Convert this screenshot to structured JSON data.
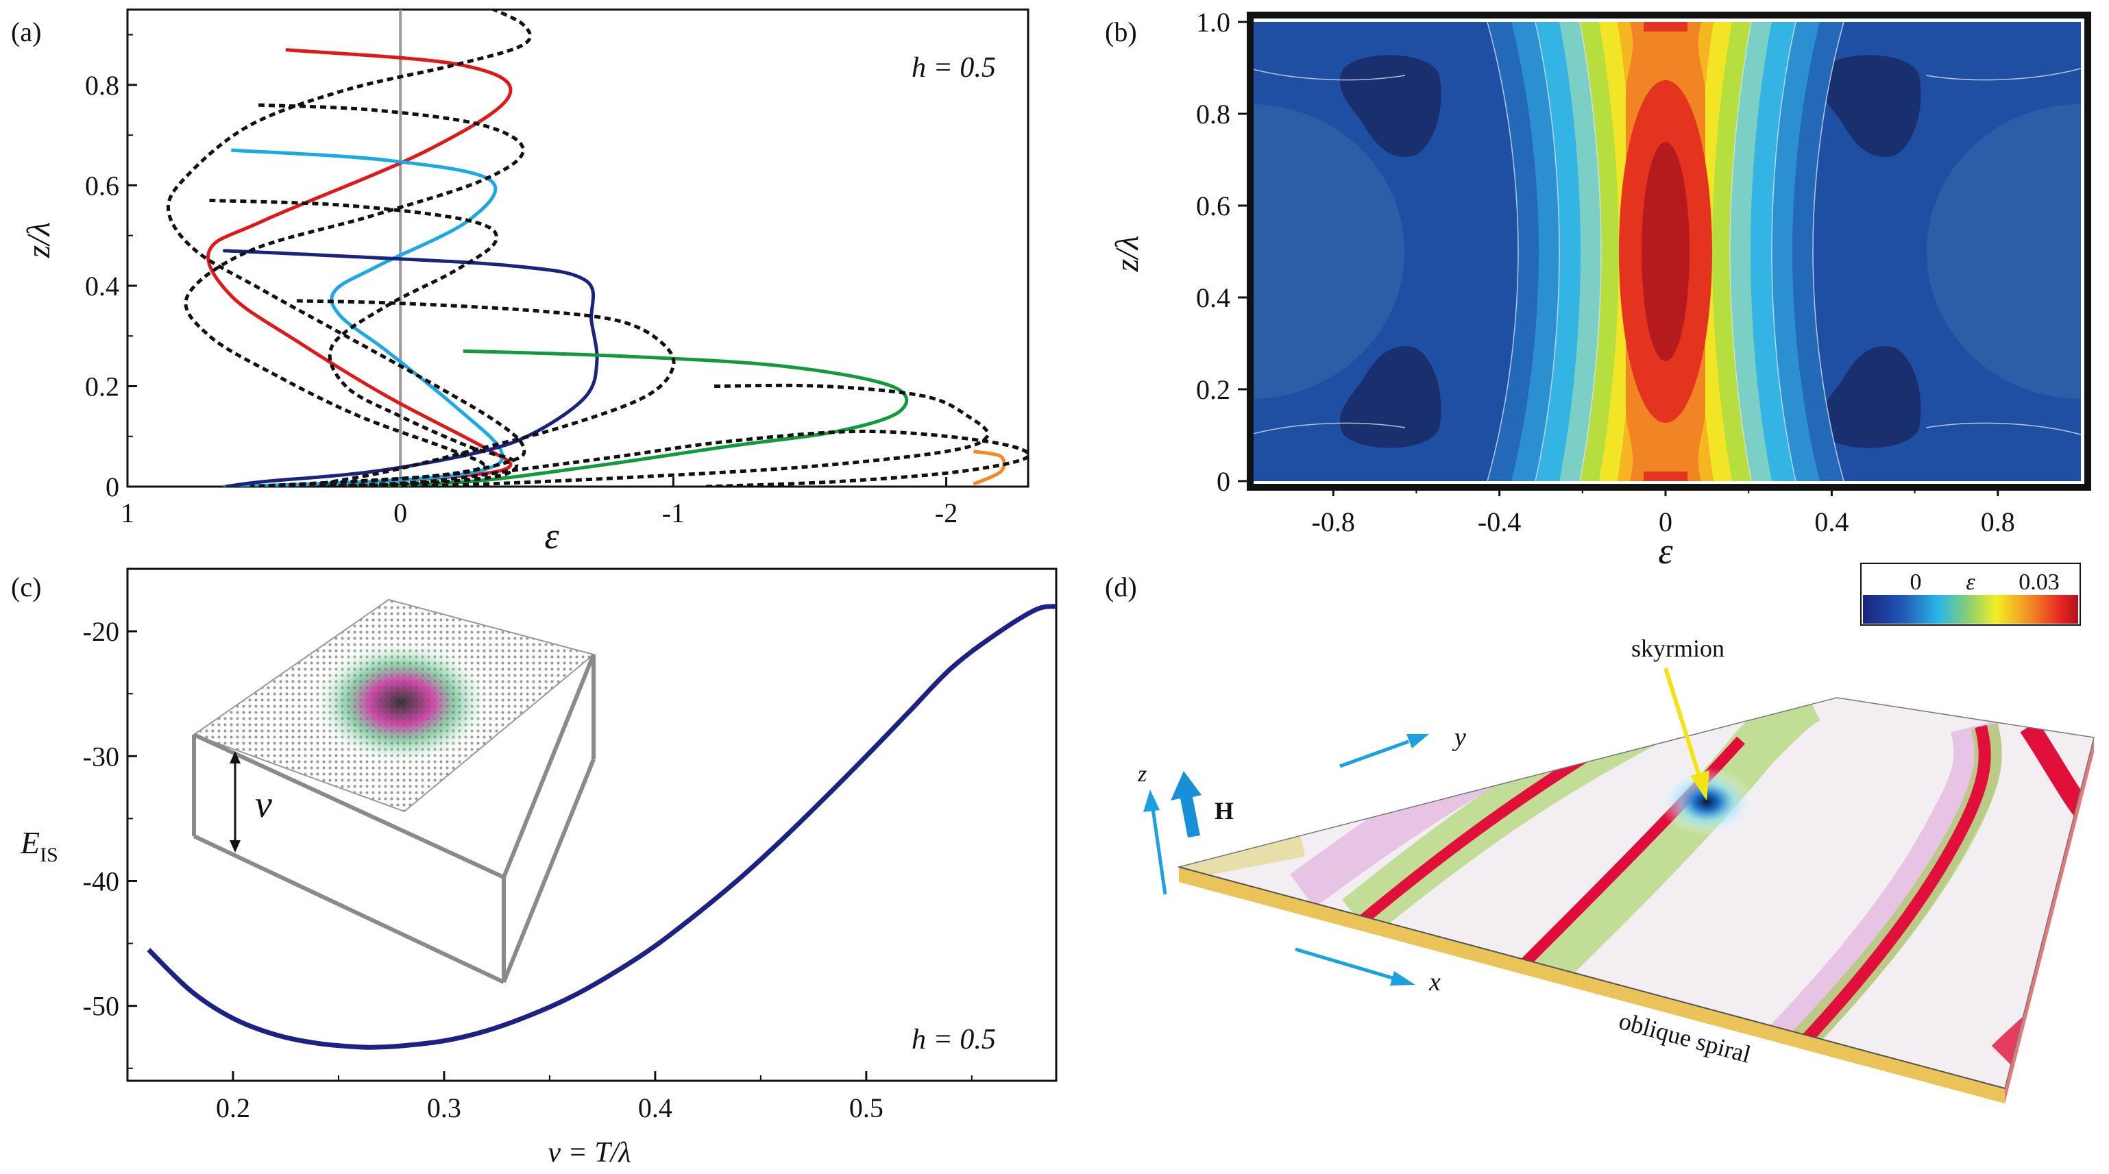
{
  "figure": {
    "panel_labels": [
      "(a)",
      "(b)",
      "(c)",
      "(d)"
    ],
    "colors": {
      "red": "#e01818",
      "light_blue": "#1aa8e6",
      "navy": "#1a237e",
      "green": "#139a3c",
      "orange": "#f08a24",
      "dashed": "#111111",
      "zero_line": "#999999",
      "curve_c": "#1c2285"
    }
  },
  "chart_data": [
    {
      "id": "a",
      "type": "line",
      "xlabel": "ε",
      "ylabel": "z/λ",
      "annotation": "h = 0.5",
      "xlim": [
        1,
        -2.3
      ],
      "ylim": [
        0,
        0.95
      ],
      "xticks": [
        1,
        0,
        -1,
        -2
      ],
      "xtick_labels": [
        "1",
        "0",
        "-1",
        "-2"
      ],
      "yticks": [
        0,
        0.2,
        0.4,
        0.6,
        0.8
      ],
      "ytick_labels": [
        "0",
        "0.2",
        "0.4",
        "0.6",
        "0.8"
      ],
      "series": [
        {
          "name": "red",
          "style": "solid",
          "color": "#e01818",
          "points": [
            [
              0.42,
              0.87
            ],
            [
              -0.22,
              0.84
            ],
            [
              -0.4,
              0.78
            ],
            [
              -0.1,
              0.67
            ],
            [
              0.5,
              0.53
            ],
            [
              0.7,
              0.47
            ],
            [
              0.62,
              0.38
            ],
            [
              0.38,
              0.29
            ],
            [
              0.05,
              0.18
            ],
            [
              -0.3,
              0.08
            ],
            [
              -0.4,
              0.04
            ],
            [
              -0.2,
              0.02
            ],
            [
              0.3,
              0.005
            ],
            [
              0.64,
              0.0
            ]
          ]
        },
        {
          "name": "light_blue",
          "style": "solid",
          "color": "#1aa8e6",
          "points": [
            [
              0.62,
              0.67
            ],
            [
              0.05,
              0.65
            ],
            [
              -0.33,
              0.61
            ],
            [
              -0.25,
              0.53
            ],
            [
              0.08,
              0.44
            ],
            [
              0.24,
              0.39
            ],
            [
              0.22,
              0.34
            ],
            [
              0.05,
              0.27
            ],
            [
              -0.2,
              0.16
            ],
            [
              -0.37,
              0.07
            ],
            [
              -0.28,
              0.03
            ],
            [
              0.1,
              0.01
            ],
            [
              0.65,
              0.0
            ]
          ]
        },
        {
          "name": "navy",
          "style": "solid",
          "color": "#1a237e",
          "points": [
            [
              0.65,
              0.47
            ],
            [
              0.25,
              0.46
            ],
            [
              -0.4,
              0.44
            ],
            [
              -0.68,
              0.41
            ],
            [
              -0.7,
              0.33
            ],
            [
              -0.72,
              0.25
            ],
            [
              -0.68,
              0.18
            ],
            [
              -0.5,
              0.11
            ],
            [
              -0.3,
              0.07
            ],
            [
              0.1,
              0.03
            ],
            [
              0.5,
              0.01
            ],
            [
              0.64,
              0.0
            ]
          ]
        },
        {
          "name": "green",
          "style": "solid",
          "color": "#139a3c",
          "points": [
            [
              -0.23,
              0.27
            ],
            [
              -0.8,
              0.26
            ],
            [
              -1.4,
              0.24
            ],
            [
              -1.8,
              0.2
            ],
            [
              -1.83,
              0.15
            ],
            [
              -1.6,
              0.11
            ],
            [
              -1.2,
              0.08
            ],
            [
              -0.7,
              0.04
            ],
            [
              -0.25,
              0.01
            ],
            [
              0.2,
              0.0
            ]
          ]
        },
        {
          "name": "orange",
          "style": "solid",
          "color": "#f08a24",
          "points": [
            [
              -2.1,
              0.07
            ],
            [
              -2.2,
              0.06
            ],
            [
              -2.2,
              0.03
            ],
            [
              -2.1,
              0.005
            ]
          ]
        },
        {
          "name": "dashed_1",
          "style": "dashed",
          "color": "#111111",
          "points": [
            [
              -0.3,
              0.96
            ],
            [
              -0.45,
              0.92
            ],
            [
              -0.45,
              0.88
            ],
            [
              -0.2,
              0.84
            ],
            [
              0.2,
              0.79
            ],
            [
              0.55,
              0.72
            ],
            [
              0.78,
              0.62
            ],
            [
              0.85,
              0.55
            ],
            [
              0.75,
              0.47
            ],
            [
              0.5,
              0.39
            ],
            [
              0.2,
              0.3
            ],
            [
              -0.1,
              0.21
            ],
            [
              -0.35,
              0.13
            ],
            [
              -0.45,
              0.08
            ],
            [
              -0.4,
              0.05
            ],
            [
              -0.1,
              0.02
            ],
            [
              0.5,
              0.0
            ]
          ]
        },
        {
          "name": "dashed_2",
          "style": "dashed",
          "color": "#111111",
          "points": [
            [
              0.52,
              0.76
            ],
            [
              0.1,
              0.75
            ],
            [
              -0.3,
              0.72
            ],
            [
              -0.45,
              0.67
            ],
            [
              -0.3,
              0.61
            ],
            [
              0.1,
              0.54
            ],
            [
              0.55,
              0.47
            ],
            [
              0.78,
              0.38
            ],
            [
              0.7,
              0.3
            ],
            [
              0.45,
              0.22
            ],
            [
              0.15,
              0.14
            ],
            [
              -0.2,
              0.07
            ],
            [
              -0.3,
              0.04
            ],
            [
              -0.1,
              0.02
            ],
            [
              0.55,
              0.0
            ]
          ]
        },
        {
          "name": "dashed_3",
          "style": "dashed",
          "color": "#111111",
          "points": [
            [
              0.7,
              0.57
            ],
            [
              0.2,
              0.56
            ],
            [
              -0.25,
              0.53
            ],
            [
              -0.35,
              0.49
            ],
            [
              -0.2,
              0.43
            ],
            [
              0.05,
              0.36
            ],
            [
              0.25,
              0.28
            ],
            [
              0.2,
              0.2
            ],
            [
              0.0,
              0.14
            ],
            [
              -0.25,
              0.08
            ],
            [
              -0.42,
              0.05
            ],
            [
              -0.35,
              0.02
            ],
            [
              0.0,
              0.005
            ],
            [
              0.3,
              0.0
            ]
          ]
        },
        {
          "name": "dashed_4",
          "style": "dashed",
          "color": "#111111",
          "points": [
            [
              0.38,
              0.37
            ],
            [
              0.0,
              0.365
            ],
            [
              -0.5,
              0.35
            ],
            [
              -0.8,
              0.33
            ],
            [
              -0.95,
              0.29
            ],
            [
              -1.0,
              0.24
            ],
            [
              -0.9,
              0.18
            ],
            [
              -0.6,
              0.12
            ],
            [
              -0.25,
              0.07
            ],
            [
              0.05,
              0.03
            ],
            [
              0.3,
              0.005
            ]
          ]
        },
        {
          "name": "dashed_5",
          "style": "dashed",
          "color": "#111111",
          "points": [
            [
              -1.15,
              0.2
            ],
            [
              -1.55,
              0.2
            ],
            [
              -1.92,
              0.18
            ],
            [
              -2.08,
              0.14
            ],
            [
              -2.15,
              0.1
            ],
            [
              -2.0,
              0.07
            ],
            [
              -1.5,
              0.04
            ],
            [
              -0.9,
              0.02
            ],
            [
              -0.3,
              0.005
            ],
            [
              0.1,
              0.0
            ]
          ]
        },
        {
          "name": "dashed_6",
          "style": "dashed",
          "color": "#111111",
          "points": [
            [
              -1.12,
              0.0
            ],
            [
              -1.6,
              0.01
            ],
            [
              -2.05,
              0.03
            ],
            [
              -2.3,
              0.06
            ],
            [
              -2.15,
              0.09
            ],
            [
              -1.7,
              0.11
            ],
            [
              -1.2,
              0.09
            ],
            [
              -0.8,
              0.06
            ],
            [
              -0.45,
              0.035
            ],
            [
              -0.1,
              0.01
            ],
            [
              0.3,
              0.0
            ]
          ]
        }
      ]
    },
    {
      "id": "b",
      "type": "heatmap",
      "xlabel": "ε",
      "ylabel": "z/λ",
      "xlim": [
        -1.0,
        1.0
      ],
      "ylim": [
        0,
        1.0
      ],
      "xticks": [
        -0.8,
        -0.4,
        0,
        0.4,
        0.8
      ],
      "xtick_labels": [
        "-0.8",
        "-0.4",
        "0",
        "0.4",
        "0.8"
      ],
      "yticks": [
        0,
        0.2,
        0.4,
        0.6,
        0.8,
        1.0
      ],
      "ytick_labels": [
        "0",
        "0.2",
        "0.4",
        "0.6",
        "0.8",
        "1.0"
      ],
      "colorbar": {
        "min_label": "0",
        "mid_label": "ε",
        "max_label": "0.03",
        "range": [
          0,
          0.03
        ]
      }
    },
    {
      "id": "c",
      "type": "line",
      "xlabel": "ν = T/λ",
      "ylabel": "E_IS",
      "annotation": "h = 0.5",
      "xlim": [
        0.15,
        0.59
      ],
      "ylim": [
        -56,
        -15
      ],
      "xticks": [
        0.2,
        0.3,
        0.4,
        0.5
      ],
      "xtick_labels": [
        "0.2",
        "0.3",
        "0.4",
        "0.5"
      ],
      "yticks": [
        -50,
        -40,
        -30,
        -20
      ],
      "ytick_labels": [
        "-50",
        "-40",
        "-30",
        "-20"
      ],
      "series": [
        {
          "name": "E_IS",
          "x": [
            0.16,
            0.18,
            0.2,
            0.22,
            0.24,
            0.26,
            0.27,
            0.28,
            0.3,
            0.32,
            0.34,
            0.36,
            0.38,
            0.4,
            0.42,
            0.44,
            0.46,
            0.48,
            0.5,
            0.52,
            0.54,
            0.56,
            0.58,
            0.59
          ],
          "y": [
            -45.5,
            -48.8,
            -51.0,
            -52.3,
            -53.0,
            -53.3,
            -53.3,
            -53.2,
            -52.8,
            -52.0,
            -50.8,
            -49.3,
            -47.4,
            -45.2,
            -42.6,
            -39.8,
            -36.7,
            -33.4,
            -30.0,
            -26.5,
            -23.0,
            -20.4,
            -18.3,
            -18.0
          ]
        }
      ]
    }
  ],
  "inset_c": {
    "nu_label": "ν"
  },
  "panel_d": {
    "labels": {
      "skyrmion": "skyrmion",
      "oblique_spiral": "oblique spiral",
      "x": "x",
      "y": "y",
      "z": "z",
      "H": "H"
    }
  }
}
